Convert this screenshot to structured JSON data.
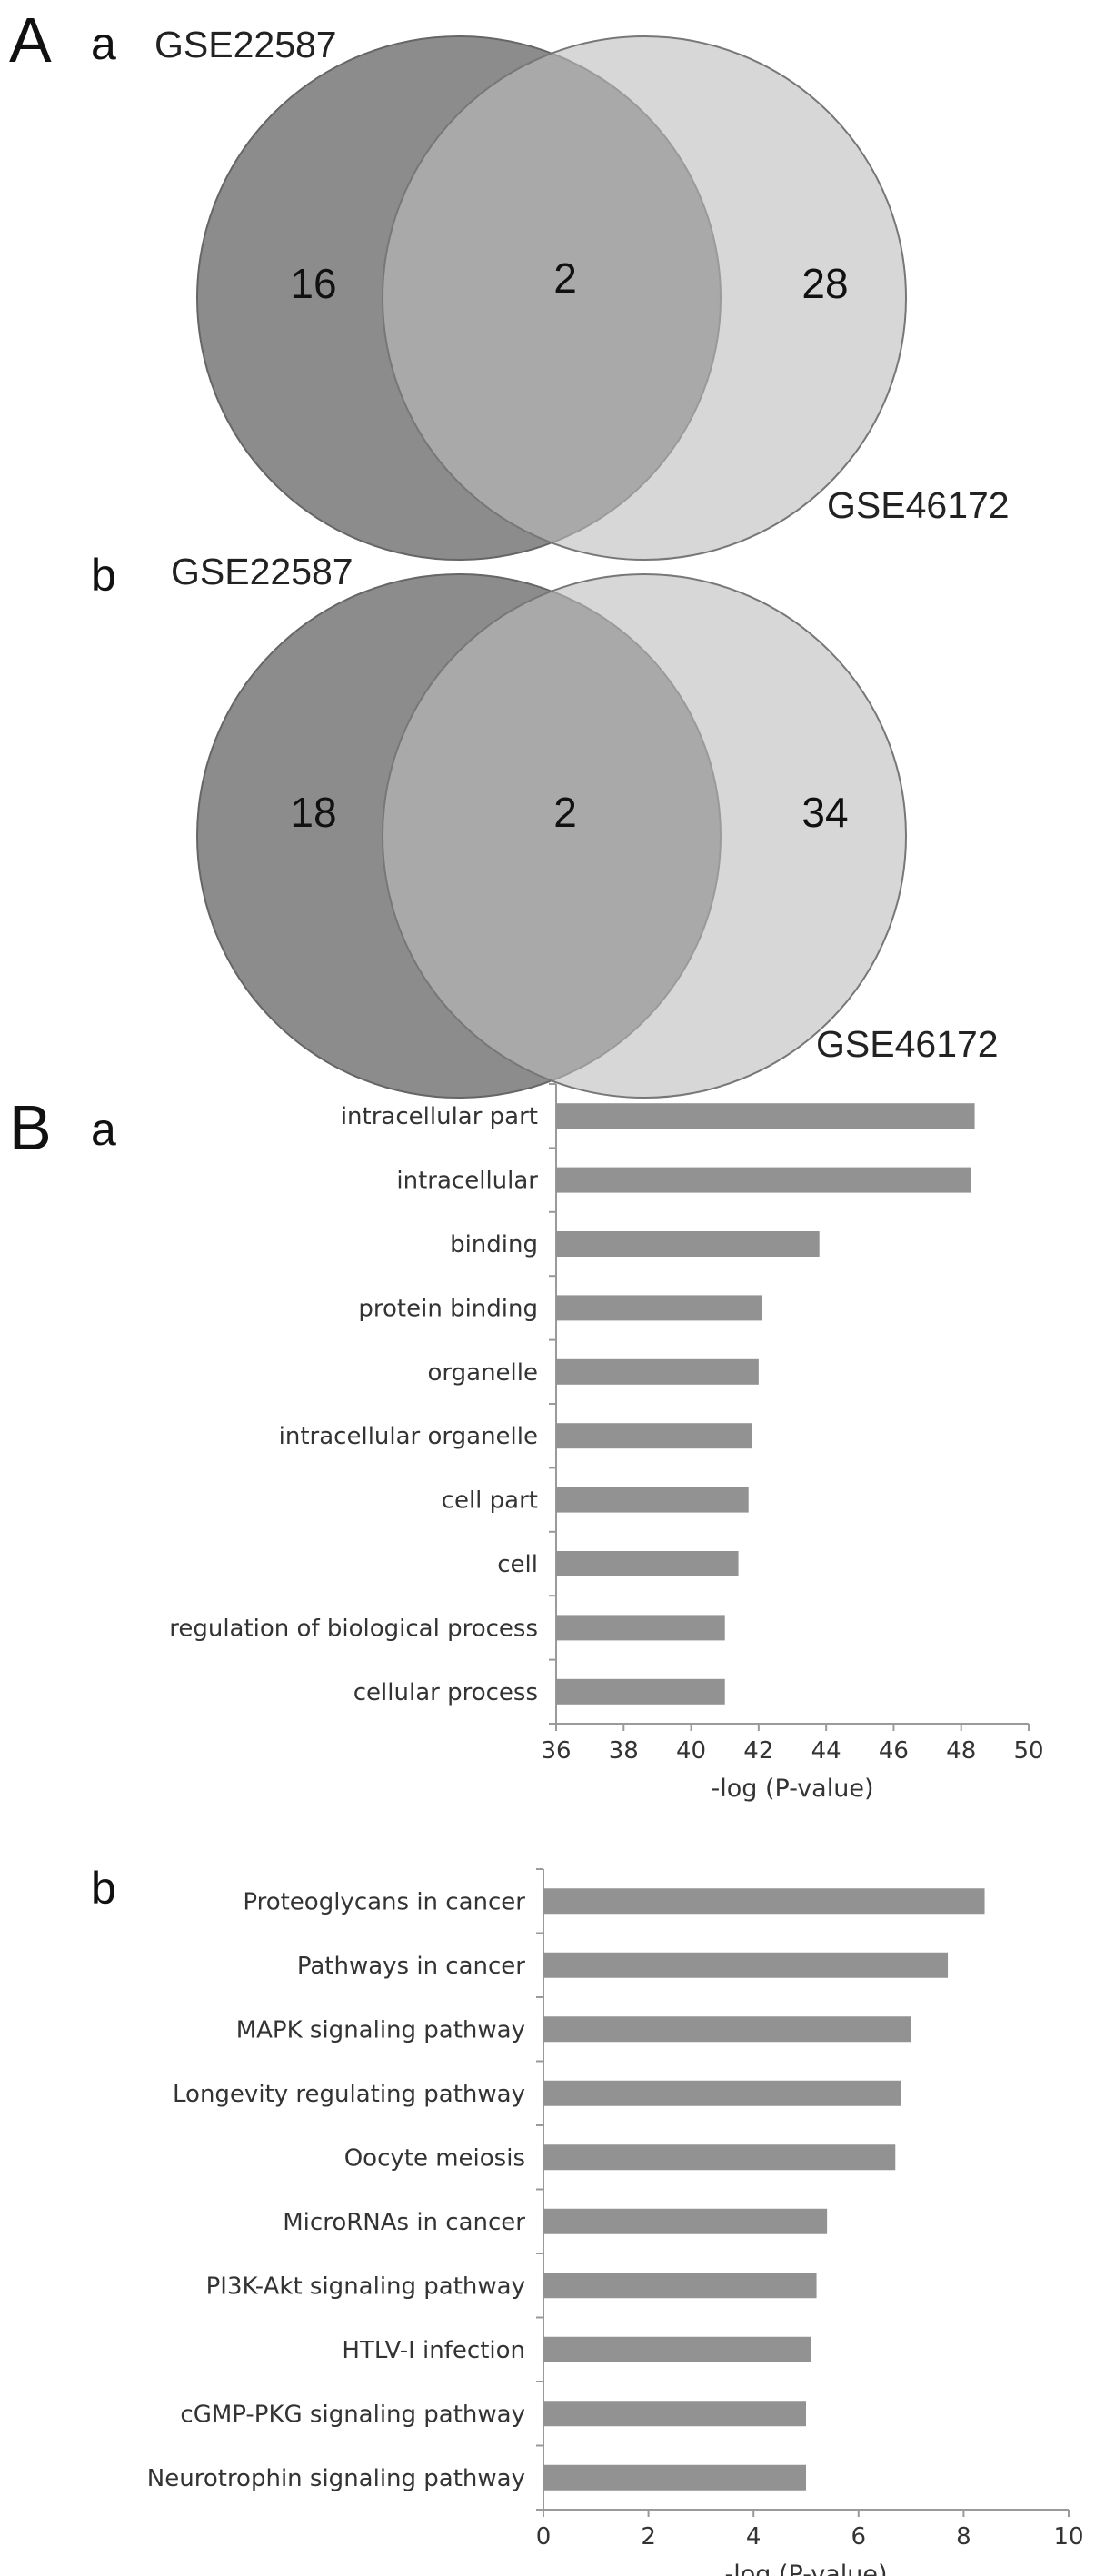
{
  "panels": {
    "A": {
      "letter": "A",
      "venns": [
        {
          "sub": "a",
          "left_set": "GSE22587",
          "right_set": "GSE46172",
          "left_only": "16",
          "overlap": "2",
          "right_only": "28",
          "colors": {
            "left": "#8c8c8c",
            "right": "#bdbdbd",
            "overlap": "#7a7a7a"
          }
        },
        {
          "sub": "b",
          "left_set": "GSE22587",
          "right_set": "GSE46172",
          "left_only": "18",
          "overlap": "2",
          "right_only": "34",
          "colors": {
            "left": "#8c8c8c",
            "right": "#bdbdbd",
            "overlap": "#7a7a7a"
          }
        }
      ]
    },
    "B": {
      "letter": "B"
    }
  },
  "chart_data": [
    {
      "type": "venn",
      "sub": "A a",
      "sets": [
        "GSE22587",
        "GSE46172"
      ],
      "regions": {
        "GSE22587_only": 16,
        "both": 2,
        "GSE46172_only": 28
      }
    },
    {
      "type": "venn",
      "sub": "A b",
      "sets": [
        "GSE22587",
        "GSE46172"
      ],
      "regions": {
        "GSE22587_only": 18,
        "both": 2,
        "GSE46172_only": 34
      }
    },
    {
      "type": "bar",
      "orientation": "horizontal",
      "sub": "a",
      "categories": [
        "intracellular part",
        "intracellular",
        "binding",
        "protein binding",
        "organelle",
        "intracellular organelle",
        "cell part",
        "cell",
        "regulation of biological process",
        "cellular process"
      ],
      "values": [
        48.4,
        48.3,
        43.8,
        42.1,
        42.0,
        41.8,
        41.7,
        41.4,
        41.0,
        41.0
      ],
      "xlabel": "-log (P-value)",
      "xlim": [
        36,
        50
      ],
      "ticks": [
        36,
        38,
        40,
        42,
        44,
        46,
        48,
        50
      ],
      "bar_color": "#929292",
      "grid": false
    },
    {
      "type": "bar",
      "orientation": "horizontal",
      "sub": "b",
      "categories": [
        "Proteoglycans in cancer",
        "Pathways in cancer",
        "MAPK signaling pathway",
        "Longevity regulating pathway",
        "Oocyte meiosis",
        "MicroRNAs in cancer",
        "PI3K-Akt signaling pathway",
        "HTLV-I infection",
        "cGMP-PKG signaling pathway",
        "Neurotrophin signaling pathway"
      ],
      "values": [
        8.4,
        7.7,
        7.0,
        6.8,
        6.7,
        5.4,
        5.2,
        5.1,
        5.0,
        5.0
      ],
      "xlabel": "-log (P-value)",
      "xlim": [
        0,
        10
      ],
      "ticks": [
        0,
        2,
        4,
        6,
        8,
        10
      ],
      "bar_color": "#929292",
      "grid": false
    }
  ]
}
